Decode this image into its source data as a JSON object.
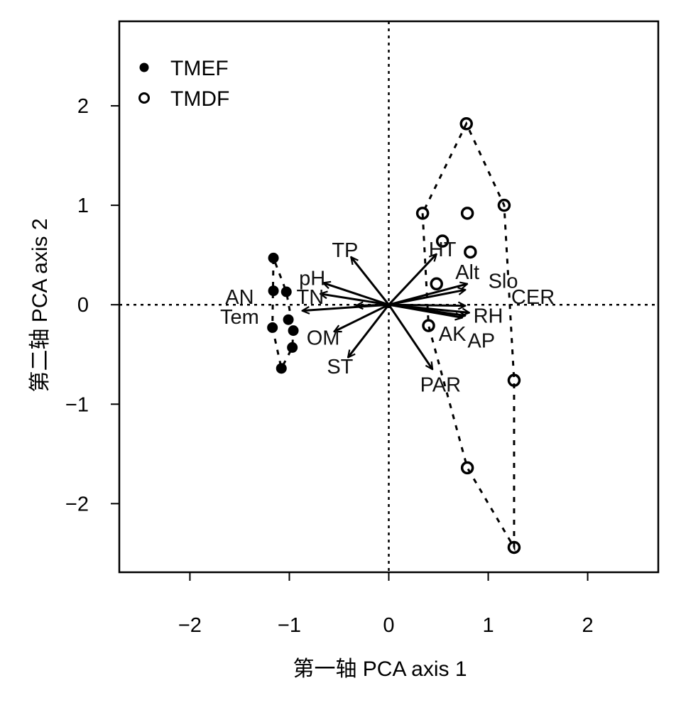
{
  "chart_data": {
    "type": "scatter",
    "subtype": "pca-biplot",
    "xlabel": "第一轴 PCA axis 1",
    "ylabel": "第二轴 PCA axis 2",
    "xlim": [
      -2.71,
      2.71
    ],
    "ylim": [
      -2.69,
      2.85
    ],
    "xticks": [
      -2,
      -1,
      0,
      1,
      2
    ],
    "yticks": [
      -2,
      -1,
      0,
      1,
      2
    ],
    "xtick_labels": [
      "−2",
      "−1",
      "0",
      "1",
      "2"
    ],
    "ytick_labels": [
      "−2",
      "−1",
      "0",
      "1",
      "2"
    ],
    "legend_position": "top-left",
    "series": [
      {
        "name": "TMEF",
        "marker": "filled-circle",
        "hull": true,
        "points": [
          [
            -1.16,
            0.47
          ],
          [
            -1.16,
            0.14
          ],
          [
            -1.03,
            0.13
          ],
          [
            -1.01,
            -0.15
          ],
          [
            -1.17,
            -0.23
          ],
          [
            -0.96,
            -0.26
          ],
          [
            -0.97,
            -0.43
          ],
          [
            -1.08,
            -0.64
          ]
        ]
      },
      {
        "name": "TMDF",
        "marker": "open-circle",
        "hull": true,
        "points": [
          [
            0.78,
            1.82
          ],
          [
            0.34,
            0.92
          ],
          [
            0.79,
            0.92
          ],
          [
            1.16,
            1.0
          ],
          [
            0.54,
            0.64
          ],
          [
            0.82,
            0.53
          ],
          [
            0.48,
            0.21
          ],
          [
            0.4,
            -0.21
          ],
          [
            1.26,
            -0.76
          ],
          [
            0.79,
            -1.64
          ],
          [
            1.26,
            -2.44
          ]
        ]
      }
    ],
    "vectors": [
      {
        "name": "TP",
        "x": -0.38,
        "y": 0.48,
        "lx": -0.44,
        "ly": 0.55
      },
      {
        "name": "pH",
        "x": -0.66,
        "y": 0.22,
        "lx": -0.77,
        "ly": 0.27
      },
      {
        "name": "TN",
        "x": -0.69,
        "y": 0.11,
        "lx": -0.79,
        "ly": 0.08
      },
      {
        "name": "AN",
        "x": -0.33,
        "y": -0.01,
        "lx": -1.5,
        "ly": 0.08
      },
      {
        "name": "Tem",
        "x": -0.87,
        "y": -0.06,
        "lx": -1.5,
        "ly": -0.12
      },
      {
        "name": "OM",
        "x": -0.55,
        "y": -0.27,
        "lx": -0.66,
        "ly": -0.33
      },
      {
        "name": "ST",
        "x": -0.41,
        "y": -0.53,
        "lx": -0.49,
        "ly": -0.62
      },
      {
        "name": "HT",
        "x": 0.48,
        "y": 0.51,
        "lx": 0.54,
        "ly": 0.56
      },
      {
        "name": "Alt",
        "x": 0.79,
        "y": 0.21,
        "lx": 0.79,
        "ly": 0.33
      },
      {
        "name": "Slo",
        "x": 0.77,
        "y": 0.15,
        "lx": 1.15,
        "ly": 0.24
      },
      {
        "name": "CER",
        "x": 0.77,
        "y": -0.01,
        "lx": 1.45,
        "ly": 0.08
      },
      {
        "name": "RH",
        "x": 0.81,
        "y": -0.08,
        "lx": 1.0,
        "ly": -0.11
      },
      {
        "name": "AK",
        "x": 0.74,
        "y": -0.13,
        "lx": 0.64,
        "ly": -0.29
      },
      {
        "name": "AP",
        "x": 0.77,
        "y": -0.11,
        "lx": 0.93,
        "ly": -0.36
      },
      {
        "name": "PAR",
        "x": 0.44,
        "y": -0.65,
        "lx": 0.52,
        "ly": -0.8
      }
    ]
  }
}
